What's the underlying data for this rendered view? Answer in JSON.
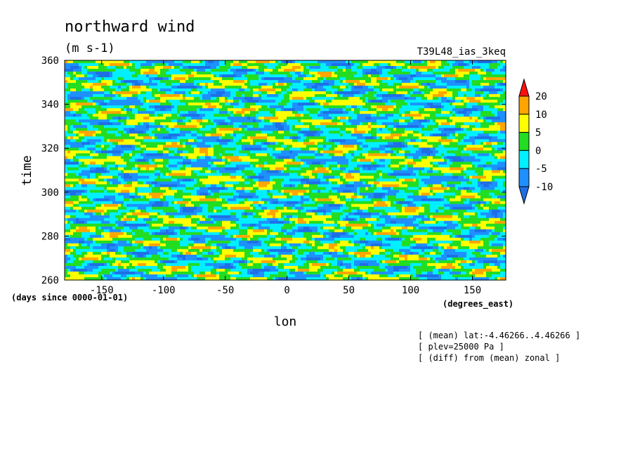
{
  "chart_data": {
    "type": "heatmap",
    "title": "northward wind",
    "units": "(m s-1)",
    "dataset": "T39L48_ias_3keq",
    "xlabel": "lon",
    "xunits": "(degrees_east)",
    "ylabel": "time",
    "yunits": "(days since 0000-01-01)",
    "xlim": [
      -180,
      177
    ],
    "ylim": [
      260,
      360
    ],
    "xticks": [
      -150,
      -100,
      -50,
      0,
      50,
      100,
      150
    ],
    "yticks": [
      260,
      280,
      300,
      320,
      340,
      360
    ],
    "xtick_labels": [
      "-150",
      "-100",
      "-50",
      "0",
      "50",
      "100",
      "150"
    ],
    "ytick_labels": [
      "260",
      "280",
      "300",
      "320",
      "340",
      "360"
    ],
    "colorbar": {
      "levels": [
        -10,
        -5,
        0,
        5,
        10,
        20
      ],
      "labels": [
        "-10",
        "-5",
        "0",
        "5",
        "10",
        "20"
      ],
      "colors": [
        "#1e6fe6",
        "#1e90ff",
        "#00f0ff",
        "#22dd22",
        "#ffff00",
        "#ffa500",
        "#ff1010"
      ]
    },
    "notes": [
      "[ (mean) lat:-4.46266..4.46266 ]",
      "[ plev=25000 Pa ]",
      "[ (diff) from (mean) zonal ]"
    ]
  }
}
